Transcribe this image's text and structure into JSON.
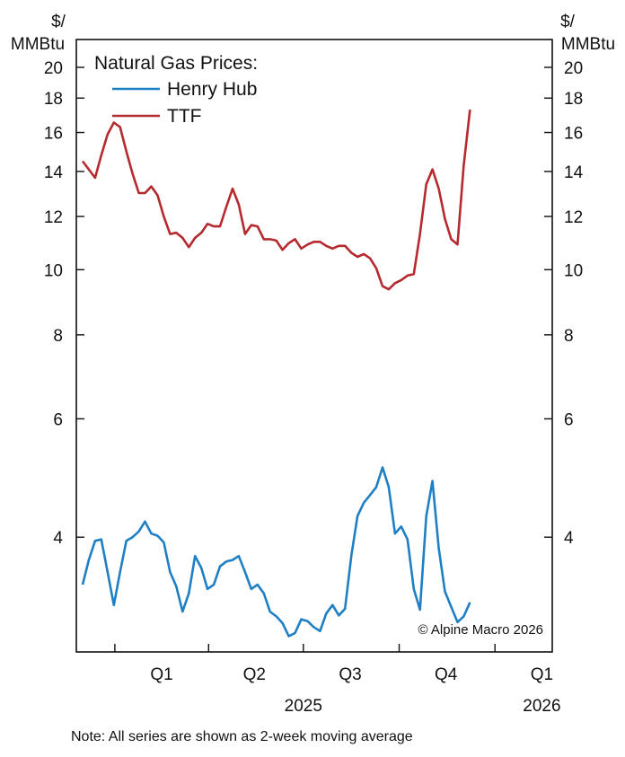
{
  "chart_data": {
    "type": "line",
    "y_scale": "log",
    "ylim": [
      2.7,
      22
    ],
    "y_ticks": [
      4,
      6,
      8,
      10,
      12,
      14,
      16,
      18,
      20
    ],
    "y_unit_left": [
      "$/",
      "MMBtu"
    ],
    "y_unit_right": [
      "$/",
      "MMBtu"
    ],
    "legend_title": "Natural Gas Prices:",
    "legend_position": "top-left",
    "grid": false,
    "x_start": "2024-11-25",
    "x_end": "2026-02-25",
    "quarter_labels": [
      {
        "label": "Q1",
        "date": "2025-02-15"
      },
      {
        "label": "Q2",
        "date": "2025-05-15"
      },
      {
        "label": "Q3",
        "date": "2025-08-15"
      },
      {
        "label": "Q4",
        "date": "2025-11-15"
      },
      {
        "label": "Q1",
        "date": "2026-02-15"
      }
    ],
    "year_labels": [
      {
        "label": "2025",
        "date": "2025-07-01"
      },
      {
        "label": "2026",
        "date": "2026-02-15"
      }
    ],
    "tick_dates": [
      "2025-01-01",
      "2025-04-01",
      "2025-07-01",
      "2025-10-01",
      "2026-01-01"
    ],
    "series": [
      {
        "name": "Henry Hub",
        "color": "#1f7fc4",
        "points": [
          [
            "2024-12-01",
            3.4
          ],
          [
            "2024-12-07",
            3.7
          ],
          [
            "2024-12-13",
            3.95
          ],
          [
            "2024-12-19",
            3.97
          ],
          [
            "2024-12-25",
            3.55
          ],
          [
            "2024-12-31",
            3.17
          ],
          [
            "2025-01-06",
            3.55
          ],
          [
            "2025-01-12",
            3.95
          ],
          [
            "2025-01-18",
            4.0
          ],
          [
            "2025-01-24",
            4.08
          ],
          [
            "2025-01-30",
            4.22
          ],
          [
            "2025-02-05",
            4.05
          ],
          [
            "2025-02-11",
            4.02
          ],
          [
            "2025-02-17",
            3.93
          ],
          [
            "2025-02-23",
            3.55
          ],
          [
            "2025-03-01",
            3.38
          ],
          [
            "2025-03-07",
            3.1
          ],
          [
            "2025-03-13",
            3.3
          ],
          [
            "2025-03-19",
            3.75
          ],
          [
            "2025-03-25",
            3.6
          ],
          [
            "2025-03-31",
            3.35
          ],
          [
            "2025-04-06",
            3.4
          ],
          [
            "2025-04-12",
            3.62
          ],
          [
            "2025-04-18",
            3.68
          ],
          [
            "2025-04-24",
            3.7
          ],
          [
            "2025-04-30",
            3.75
          ],
          [
            "2025-05-06",
            3.55
          ],
          [
            "2025-05-12",
            3.35
          ],
          [
            "2025-05-18",
            3.4
          ],
          [
            "2025-05-24",
            3.3
          ],
          [
            "2025-05-30",
            3.1
          ],
          [
            "2025-06-05",
            3.05
          ],
          [
            "2025-06-11",
            2.98
          ],
          [
            "2025-06-17",
            2.85
          ],
          [
            "2025-06-23",
            2.88
          ],
          [
            "2025-06-29",
            3.02
          ],
          [
            "2025-07-05",
            3.0
          ],
          [
            "2025-07-11",
            2.94
          ],
          [
            "2025-07-17",
            2.9
          ],
          [
            "2025-07-23",
            3.08
          ],
          [
            "2025-07-29",
            3.17
          ],
          [
            "2025-08-04",
            3.06
          ],
          [
            "2025-08-10",
            3.13
          ],
          [
            "2025-08-16",
            3.75
          ],
          [
            "2025-08-22",
            4.3
          ],
          [
            "2025-08-28",
            4.5
          ],
          [
            "2025-09-03",
            4.62
          ],
          [
            "2025-09-09",
            4.75
          ],
          [
            "2025-09-15",
            5.08
          ],
          [
            "2025-09-21",
            4.75
          ],
          [
            "2025-09-27",
            4.05
          ],
          [
            "2025-10-03",
            4.15
          ],
          [
            "2025-10-09",
            3.97
          ],
          [
            "2025-10-15",
            3.35
          ],
          [
            "2025-10-21",
            3.12
          ],
          [
            "2025-10-27",
            4.3
          ],
          [
            "2025-11-02",
            4.85
          ],
          [
            "2025-11-08",
            3.85
          ],
          [
            "2025-11-14",
            3.32
          ],
          [
            "2025-11-20",
            3.15
          ],
          [
            "2025-11-26",
            2.99
          ],
          [
            "2025-12-02",
            3.05
          ],
          [
            "2025-12-08",
            3.2
          ]
        ]
      },
      {
        "name": "TTF",
        "color": "#b52a2e",
        "points": [
          [
            "2024-12-01",
            14.5
          ],
          [
            "2024-12-07",
            14.1
          ],
          [
            "2024-12-13",
            13.7
          ],
          [
            "2024-12-19",
            14.8
          ],
          [
            "2024-12-25",
            15.9
          ],
          [
            "2024-12-31",
            16.55
          ],
          [
            "2025-01-06",
            16.3
          ],
          [
            "2025-01-12",
            15.0
          ],
          [
            "2025-01-18",
            13.9
          ],
          [
            "2025-01-24",
            13.0
          ],
          [
            "2025-01-30",
            13.0
          ],
          [
            "2025-02-05",
            13.3
          ],
          [
            "2025-02-11",
            12.9
          ],
          [
            "2025-02-17",
            12.0
          ],
          [
            "2025-02-23",
            11.3
          ],
          [
            "2025-03-01",
            11.35
          ],
          [
            "2025-03-07",
            11.15
          ],
          [
            "2025-03-13",
            10.8
          ],
          [
            "2025-03-19",
            11.15
          ],
          [
            "2025-03-25",
            11.35
          ],
          [
            "2025-03-31",
            11.7
          ],
          [
            "2025-04-06",
            11.6
          ],
          [
            "2025-04-12",
            11.6
          ],
          [
            "2025-04-18",
            12.4
          ],
          [
            "2025-04-24",
            13.2
          ],
          [
            "2025-04-30",
            12.5
          ],
          [
            "2025-05-06",
            11.3
          ],
          [
            "2025-05-12",
            11.65
          ],
          [
            "2025-05-18",
            11.6
          ],
          [
            "2025-05-24",
            11.1
          ],
          [
            "2025-05-30",
            11.1
          ],
          [
            "2025-06-05",
            11.05
          ],
          [
            "2025-06-11",
            10.7
          ],
          [
            "2025-06-17",
            10.95
          ],
          [
            "2025-06-23",
            11.1
          ],
          [
            "2025-06-29",
            10.75
          ],
          [
            "2025-07-05",
            10.9
          ],
          [
            "2025-07-11",
            11.0
          ],
          [
            "2025-07-17",
            11.0
          ],
          [
            "2025-07-23",
            10.85
          ],
          [
            "2025-07-29",
            10.75
          ],
          [
            "2025-08-04",
            10.85
          ],
          [
            "2025-08-10",
            10.85
          ],
          [
            "2025-08-16",
            10.6
          ],
          [
            "2025-08-22",
            10.45
          ],
          [
            "2025-08-28",
            10.55
          ],
          [
            "2025-09-03",
            10.4
          ],
          [
            "2025-09-09",
            10.05
          ],
          [
            "2025-09-15",
            9.45
          ],
          [
            "2025-09-21",
            9.35
          ],
          [
            "2025-09-27",
            9.55
          ],
          [
            "2025-10-03",
            9.65
          ],
          [
            "2025-10-09",
            9.8
          ],
          [
            "2025-10-15",
            9.85
          ],
          [
            "2025-10-21",
            11.3
          ],
          [
            "2025-10-27",
            13.4
          ],
          [
            "2025-11-02",
            14.1
          ],
          [
            "2025-11-08",
            13.2
          ],
          [
            "2025-11-14",
            11.9
          ],
          [
            "2025-11-20",
            11.1
          ],
          [
            "2025-11-26",
            10.9
          ],
          [
            "2025-12-02",
            14.3
          ],
          [
            "2025-12-08",
            17.3
          ]
        ]
      }
    ]
  },
  "credit": "© Alpine Macro 2026",
  "note": "Note: All series are shown as 2-week moving average"
}
